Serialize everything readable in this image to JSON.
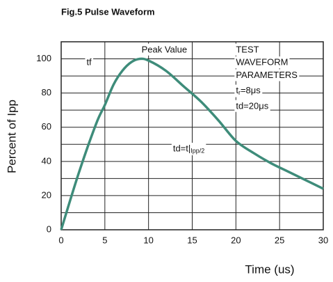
{
  "chart_data": {
    "type": "line",
    "title": "Fig.5   Pulse Waveform",
    "x_label": "Time (us)",
    "y_label": "Percent of Ipp",
    "x": [
      0,
      2,
      4,
      5,
      6,
      7,
      8,
      9,
      10,
      12,
      14,
      16,
      18,
      20,
      22,
      24,
      26,
      28,
      30
    ],
    "values": [
      0,
      33,
      62,
      73,
      85,
      93,
      98,
      100,
      99,
      93,
      84,
      75,
      64,
      52,
      45,
      39,
      34,
      29,
      24
    ],
    "color": "#3e8c7a",
    "xlim": [
      0,
      30
    ],
    "xticks": [
      0,
      5,
      10,
      15,
      20,
      25,
      30
    ],
    "ylim": [
      0,
      110
    ],
    "yticks": [
      0,
      20,
      40,
      60,
      80,
      100
    ],
    "ygrid": [
      0,
      10,
      20,
      30,
      40,
      50,
      60,
      70,
      80,
      90,
      100,
      110
    ],
    "grid": true,
    "annotations": [
      {
        "text": "Peak Value",
        "x": 9.2,
        "y": 105
      },
      {
        "text": "tf",
        "x": 2.9,
        "y": 97.5
      },
      {
        "text": "TEST",
        "x": 20,
        "y": 105
      },
      {
        "text": "WAVEFORM",
        "x": 20,
        "y": 97.5
      },
      {
        "text": "PARAMETERS",
        "x": 20,
        "y": 90
      },
      {
        "text": "t",
        "sub": "r",
        "rest": "=8μs",
        "x": 20,
        "y": 81
      },
      {
        "text": "td=20μs",
        "x": 20,
        "y": 72
      },
      {
        "text": "td=t|",
        "sub": "Ipp/2",
        "x": 12.8,
        "y": 47
      }
    ]
  }
}
